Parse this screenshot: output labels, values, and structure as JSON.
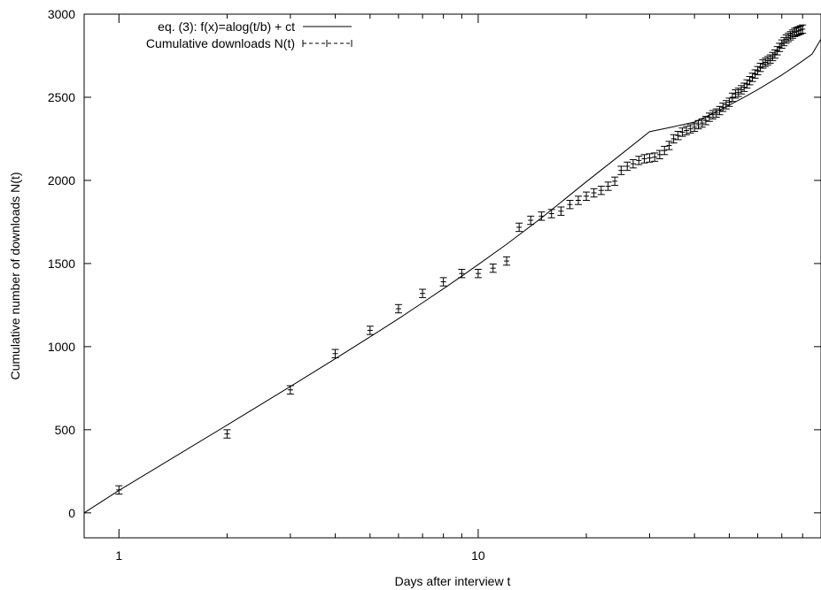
{
  "chart_data": {
    "type": "scatter",
    "title": "",
    "xlabel": "Days after interview t",
    "ylabel": "Cumulative number of downloads N(t)",
    "xscale": "log",
    "xlim": [
      0.8,
      90
    ],
    "ylim": [
      -150,
      3000
    ],
    "x_ticks": [
      1,
      10
    ],
    "y_ticks": [
      0,
      500,
      1000,
      1500,
      2000,
      2500,
      3000
    ],
    "grid": false,
    "legend_position": "top-left",
    "series": [
      {
        "name": "eq. (3): f(x)=alog(t/b) + ct",
        "kind": "line",
        "color": "#000000",
        "x": [
          0.8,
          1,
          2,
          3,
          4,
          5,
          6,
          7,
          8,
          9,
          10,
          12,
          15,
          20,
          25,
          30,
          35,
          40,
          45,
          50,
          55,
          60,
          65,
          70,
          75,
          80,
          85,
          90
        ],
        "y": [
          0,
          135,
          528,
          760,
          927,
          1059,
          1168,
          1264,
          1348,
          1424,
          1494,
          1616,
          1774,
          1992,
          2157,
          2293,
          2323,
          2351,
          2403,
          2453,
          2500,
          2546,
          2591,
          2634,
          2677,
          2719,
          2760,
          2850
        ]
      },
      {
        "name": "Cumulative downloads N(t)",
        "kind": "points-with-errorbars",
        "color": "#000000",
        "x": [
          1,
          2,
          3,
          4,
          5,
          6,
          7,
          8,
          9,
          10,
          11,
          12,
          13,
          14,
          15,
          16,
          17,
          18,
          19,
          20,
          21,
          22,
          23,
          24,
          25,
          26,
          27,
          28,
          29,
          30,
          31,
          32,
          33,
          34,
          35,
          36,
          37,
          38,
          39,
          40,
          41,
          42,
          43,
          44,
          45,
          46,
          47,
          48,
          49,
          50,
          51,
          52,
          53,
          54,
          55,
          56,
          57,
          58,
          59,
          60,
          61,
          62,
          63,
          64,
          65,
          66,
          67,
          68,
          69,
          70,
          71,
          72,
          73,
          74,
          75,
          76,
          77,
          78,
          79,
          80
        ],
        "y": [
          138,
          475,
          740,
          958,
          1098,
          1228,
          1320,
          1390,
          1440,
          1440,
          1472,
          1515,
          1718,
          1760,
          1785,
          1800,
          1815,
          1855,
          1880,
          1905,
          1925,
          1940,
          1965,
          1995,
          2060,
          2085,
          2100,
          2120,
          2130,
          2135,
          2140,
          2155,
          2180,
          2210,
          2250,
          2270,
          2290,
          2300,
          2310,
          2320,
          2335,
          2345,
          2360,
          2380,
          2395,
          2405,
          2420,
          2440,
          2455,
          2470,
          2500,
          2520,
          2530,
          2545,
          2560,
          2580,
          2600,
          2620,
          2640,
          2660,
          2680,
          2700,
          2710,
          2720,
          2730,
          2745,
          2760,
          2780,
          2800,
          2820,
          2835,
          2850,
          2860,
          2870,
          2880,
          2890,
          2895,
          2900,
          2905,
          2910
        ],
        "error": 25
      }
    ]
  }
}
